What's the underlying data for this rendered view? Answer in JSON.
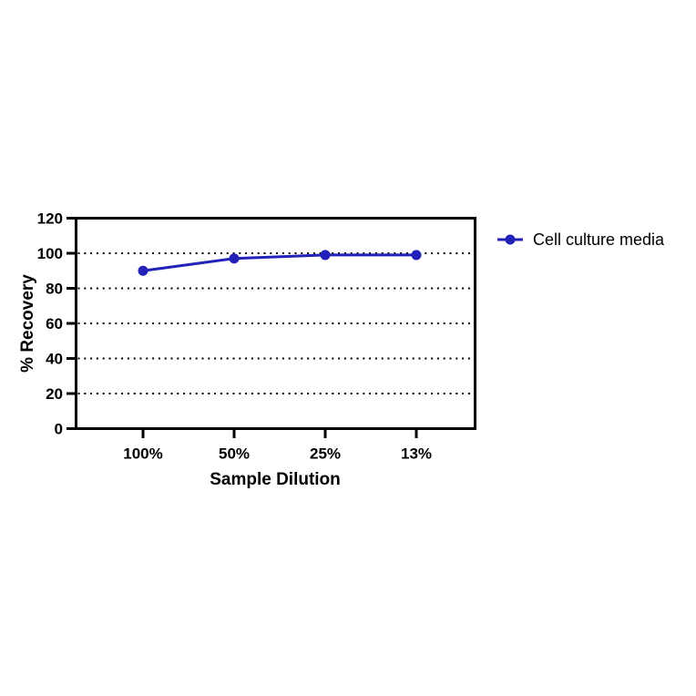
{
  "chart_data": {
    "type": "line",
    "categories": [
      "100%",
      "50%",
      "25%",
      "13%"
    ],
    "series": [
      {
        "name": "Cell culture media",
        "color": "#2222b8",
        "values": [
          90,
          97,
          99,
          99
        ]
      }
    ],
    "title": "",
    "xlabel": "Sample Dilution",
    "ylabel": "% Recovery",
    "ylim": [
      0,
      120
    ],
    "yticks": [
      0,
      20,
      40,
      60,
      80,
      100,
      120
    ],
    "grid_values": [
      20,
      40,
      60,
      80,
      100
    ],
    "grid_style": "dotted",
    "grid_color": "#000000",
    "axis_color": "#000000",
    "background": "#ffffff",
    "legend_position": "right"
  }
}
